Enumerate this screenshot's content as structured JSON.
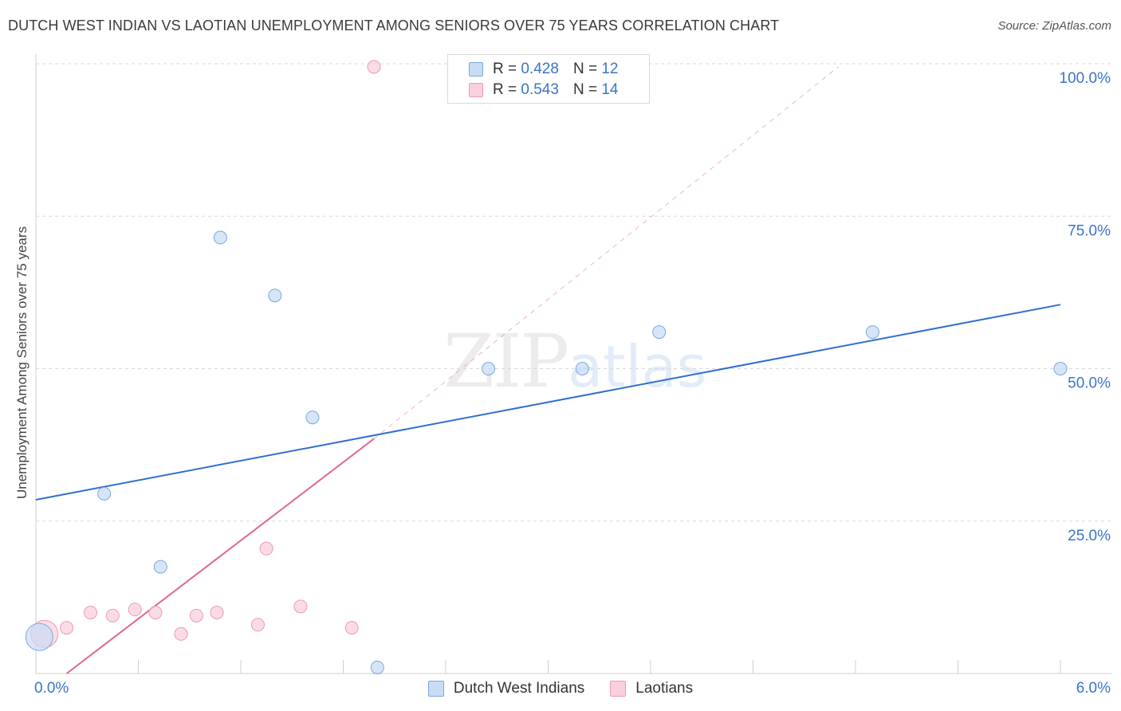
{
  "header": {
    "title": "DUTCH WEST INDIAN VS LAOTIAN UNEMPLOYMENT AMONG SENIORS OVER 75 YEARS CORRELATION CHART",
    "source": "Source: ZipAtlas.com"
  },
  "watermark": {
    "zip": "ZIP",
    "atlas": "atlas"
  },
  "legend_stats": [
    {
      "series": "Dutch West Indians",
      "r_label": "R =",
      "r_value": "0.428",
      "n_label": "N =",
      "n_value": "12",
      "color": "#aecdf4"
    },
    {
      "series": "Laotians",
      "r_label": "R =",
      "r_value": "0.543",
      "n_label": "N =",
      "n_value": "14",
      "color": "#f7c1cf"
    }
  ],
  "legend_bottom": [
    {
      "label": "Dutch West Indians",
      "color": "#aecdf4"
    },
    {
      "label": "Laotians",
      "color": "#f7c1cf"
    }
  ],
  "colors": {
    "blue_line": "#2e6fd0",
    "pink_line": "#e0668f",
    "blue_fill": "#c9dcf5",
    "blue_stroke": "#7aa6e0",
    "pink_fill": "#f9d0dc",
    "pink_stroke": "#eb9bb3",
    "tick_label": "#3a74c9",
    "grid": "#d8d8d8"
  },
  "chart_data": {
    "type": "scatter",
    "title": "DUTCH WEST INDIAN VS LAOTIAN UNEMPLOYMENT AMONG SENIORS OVER 75 YEARS CORRELATION CHART",
    "xlabel": "",
    "ylabel": "Unemployment Among Seniors over 75 years",
    "xlim": [
      0,
      6.0
    ],
    "ylim": [
      0,
      100
    ],
    "x_tick_labels": [
      {
        "value": 0,
        "label": "0.0%"
      },
      {
        "value": 6,
        "label": "6.0%"
      }
    ],
    "y_tick_labels": [
      {
        "value": 25,
        "label": "25.0%"
      },
      {
        "value": 50,
        "label": "50.0%"
      },
      {
        "value": 75,
        "label": "75.0%"
      },
      {
        "value": 100,
        "label": "100.0%"
      }
    ],
    "x_minor_ticks": [
      0.6,
      1.2,
      1.8,
      2.4,
      3.0,
      3.6,
      4.2,
      4.8,
      5.4,
      6.0
    ],
    "series": [
      {
        "name": "Dutch West Indians",
        "points": [
          {
            "x": 0.02,
            "y": 6.0,
            "big": true
          },
          {
            "x": 0.4,
            "y": 29.5
          },
          {
            "x": 0.73,
            "y": 17.5
          },
          {
            "x": 1.08,
            "y": 71.5
          },
          {
            "x": 1.4,
            "y": 62.0
          },
          {
            "x": 1.62,
            "y": 42.0
          },
          {
            "x": 2.0,
            "y": 1.0
          },
          {
            "x": 2.65,
            "y": 50.0
          },
          {
            "x": 3.2,
            "y": 50.0
          },
          {
            "x": 3.65,
            "y": 56.0
          },
          {
            "x": 4.9,
            "y": 56.0
          },
          {
            "x": 6.0,
            "y": 50.0
          }
        ],
        "trend": {
          "x1": 0.0,
          "y1": 28.5,
          "x2": 6.0,
          "y2": 60.5
        }
      },
      {
        "name": "Laotians",
        "points": [
          {
            "x": 0.05,
            "y": 6.5,
            "big": true
          },
          {
            "x": 0.18,
            "y": 7.5
          },
          {
            "x": 0.32,
            "y": 10.0
          },
          {
            "x": 0.45,
            "y": 9.5
          },
          {
            "x": 0.58,
            "y": 10.5
          },
          {
            "x": 0.7,
            "y": 10.0
          },
          {
            "x": 0.85,
            "y": 6.5
          },
          {
            "x": 0.94,
            "y": 9.5
          },
          {
            "x": 1.06,
            "y": 10.0
          },
          {
            "x": 1.3,
            "y": 8.0
          },
          {
            "x": 1.35,
            "y": 20.5
          },
          {
            "x": 1.55,
            "y": 11.0
          },
          {
            "x": 1.85,
            "y": 7.5
          },
          {
            "x": 1.98,
            "y": 99.5
          }
        ],
        "trend": {
          "x1": 0.18,
          "y1": 0.0,
          "x2": 1.98,
          "y2": 38.5
        },
        "trend_extension": {
          "x1": 1.98,
          "y1": 38.5,
          "x2": 4.7,
          "y2": 99.5
        }
      }
    ]
  }
}
